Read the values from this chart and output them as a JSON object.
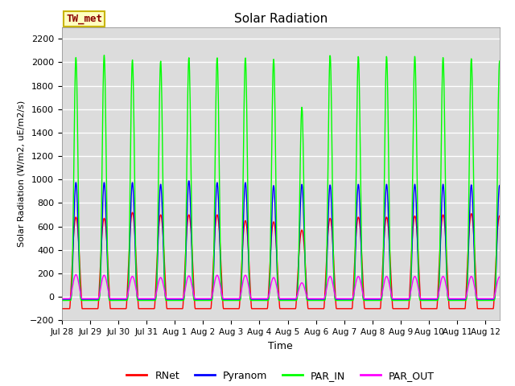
{
  "title": "Solar Radiation",
  "ylabel": "Solar Radiation (W/m2, uE/m2/s)",
  "xlabel": "Time",
  "ylim": [
    -200,
    2300
  ],
  "yticks": [
    -200,
    0,
    200,
    400,
    600,
    800,
    1000,
    1200,
    1400,
    1600,
    1800,
    2000,
    2200
  ],
  "annotation_text": "TW_met",
  "annotation_color": "#8B0000",
  "annotation_bg": "#FFFFC0",
  "annotation_border": "#C8B400",
  "bg_color": "#DCDCDC",
  "colors": {
    "RNet": "#FF0000",
    "Pyranom": "#0000FF",
    "PAR_IN": "#00FF00",
    "PAR_OUT": "#FF00FF"
  },
  "x_tick_labels": [
    "Jul 28",
    "Jul 29",
    "Jul 30",
    "Jul 31",
    "Aug 1",
    "Aug 2",
    "Aug 3",
    "Aug 4",
    "Aug 5",
    "Aug 6",
    "Aug 7",
    "Aug 8",
    "Aug 9",
    "Aug 10",
    "Aug 11",
    "Aug 12"
  ],
  "n_days": 15.5,
  "legend_labels": [
    "RNet",
    "Pyranom",
    "PAR_IN",
    "PAR_OUT"
  ]
}
